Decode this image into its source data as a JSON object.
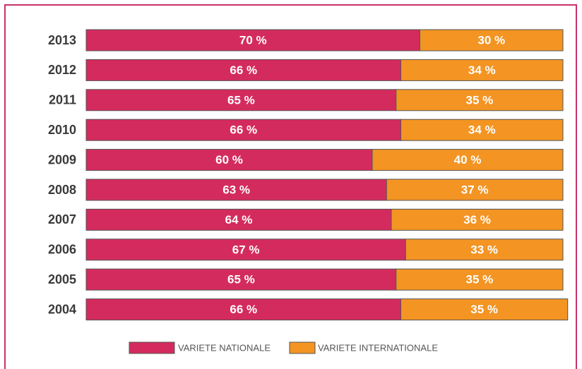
{
  "chart_data": {
    "type": "stacked-bar-horizontal",
    "categories": [
      "2013",
      "2012",
      "2011",
      "2010",
      "2009",
      "2008",
      "2007",
      "2006",
      "2005",
      "2004"
    ],
    "series": [
      {
        "name": "VARIETE NATIONALE",
        "color": "#d42b5e",
        "values": [
          70,
          66,
          65,
          66,
          60,
          63,
          64,
          67,
          65,
          66
        ],
        "value_labels": [
          "70 %",
          "66 %",
          "65 %",
          "66 %",
          "60 %",
          "63 %",
          "64 %",
          "67 %",
          "65 %",
          "66 %"
        ]
      },
      {
        "name": "VARIETE INTERNATIONALE",
        "color": "#f39423",
        "values": [
          30,
          34,
          35,
          34,
          40,
          37,
          36,
          33,
          35,
          35
        ],
        "value_labels": [
          "30 %",
          "34 %",
          "35 %",
          "34 %",
          "40 %",
          "37 %",
          "36 %",
          "33 %",
          "35 %",
          "35 %"
        ]
      }
    ],
    "xlim": [
      0,
      100
    ],
    "legend": "bottom"
  }
}
